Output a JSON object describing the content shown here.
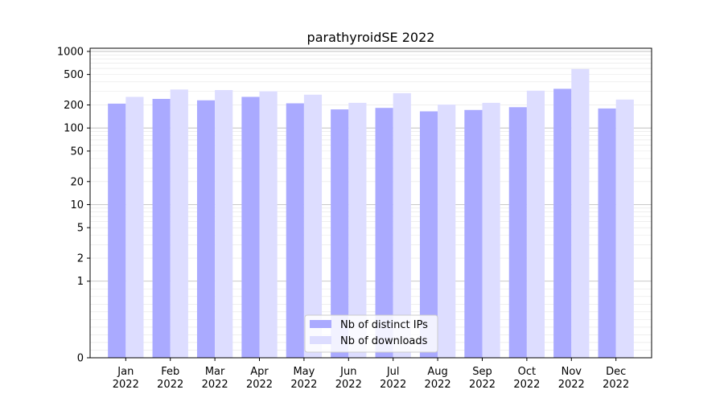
{
  "chart_data": {
    "type": "bar",
    "title": "parathyroidSE 2022",
    "xlabel": "",
    "ylabel": "",
    "y_scale": "symlog",
    "ylim": [
      0,
      1100
    ],
    "y_ticks": [
      0,
      1,
      2,
      5,
      10,
      20,
      50,
      100,
      200,
      500,
      1000
    ],
    "categories": [
      "Jan\n2022",
      "Feb\n2022",
      "Mar\n2022",
      "Apr\n2022",
      "May\n2022",
      "Jun\n2022",
      "Jul\n2022",
      "Aug\n2022",
      "Sep\n2022",
      "Oct\n2022",
      "Nov\n2022",
      "Dec\n2022"
    ],
    "series": [
      {
        "name": "Nb of distinct IPs",
        "color": "#aaaaff",
        "values": [
          208,
          240,
          230,
          255,
          210,
          175,
          183,
          165,
          172,
          187,
          325,
          180
        ]
      },
      {
        "name": "Nb of downloads",
        "color": "#ddddff",
        "values": [
          255,
          318,
          313,
          302,
          272,
          213,
          285,
          202,
          213,
          307,
          590,
          235
        ]
      }
    ],
    "grid": true,
    "legend_position": "bottom-center"
  }
}
